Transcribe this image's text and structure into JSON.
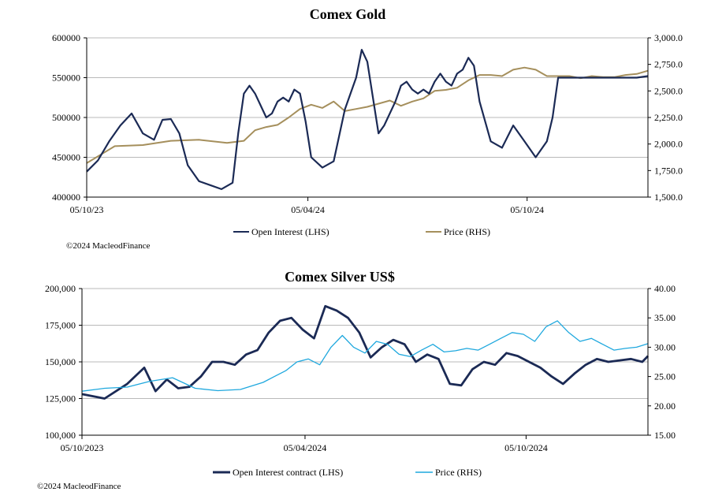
{
  "colors": {
    "gold_oi": "#1b2a55",
    "gold_price": "#a58f5c",
    "silver_oi": "#1b2a55",
    "silver_price": "#1fa8de",
    "grid": "#b9b9b9",
    "axis": "#000000"
  },
  "chart_data": [
    {
      "type": "line",
      "title": "Comex Gold",
      "x_tick_labels": [
        "05/10/23",
        "05/04/24",
        "05/10/24"
      ],
      "x_tick_positions": [
        0,
        0.3941,
        0.7847
      ],
      "left_axis": {
        "ticks": [
          "400000",
          "450000",
          "500000",
          "550000",
          "600000"
        ],
        "ylim": [
          400000,
          600000
        ]
      },
      "right_axis": {
        "ticks": [
          "1,500.0",
          "1,750.0",
          "2,000.0",
          "2,250.0",
          "2,500.0",
          "2,750.0",
          "3,000.0"
        ],
        "ylim": [
          1500,
          3000
        ]
      },
      "legend": [
        "Open Interest (LHS)",
        "Price (RHS)"
      ],
      "copyright": "©2024 MacleodFinance",
      "series": [
        {
          "name": "Open Interest (LHS)",
          "axis": "left",
          "x": [
            0,
            0.02,
            0.04,
            0.06,
            0.08,
            0.1,
            0.12,
            0.135,
            0.15,
            0.165,
            0.18,
            0.2,
            0.22,
            0.24,
            0.26,
            0.27,
            0.28,
            0.29,
            0.3,
            0.32,
            0.33,
            0.34,
            0.35,
            0.36,
            0.37,
            0.38,
            0.39,
            0.4,
            0.42,
            0.44,
            0.46,
            0.48,
            0.49,
            0.5,
            0.51,
            0.52,
            0.53,
            0.55,
            0.56,
            0.57,
            0.58,
            0.59,
            0.6,
            0.61,
            0.62,
            0.63,
            0.64,
            0.65,
            0.66,
            0.67,
            0.68,
            0.69,
            0.7,
            0.72,
            0.74,
            0.76,
            0.78,
            0.8,
            0.82,
            0.83,
            0.84,
            0.85,
            0.86,
            0.87,
            0.88,
            0.9,
            0.92,
            0.94,
            0.96,
            0.98,
            1.0
          ],
          "values": [
            432000,
            446000,
            470000,
            490000,
            505000,
            480000,
            472000,
            497000,
            498000,
            480000,
            440000,
            420000,
            415000,
            410000,
            418000,
            480000,
            530000,
            540000,
            530000,
            500000,
            505000,
            520000,
            525000,
            520000,
            535000,
            530000,
            495000,
            450000,
            437000,
            445000,
            510000,
            550000,
            585000,
            570000,
            525000,
            480000,
            490000,
            520000,
            540000,
            545000,
            535000,
            530000,
            535000,
            530000,
            545000,
            555000,
            545000,
            540000,
            555000,
            560000,
            575000,
            565000,
            520000,
            470000,
            462000,
            490000,
            470000,
            450000,
            470000,
            500000,
            550000,
            550000,
            550000,
            550000,
            550000,
            550000,
            550000,
            550000,
            550000,
            550000,
            552000
          ]
        },
        {
          "name": "Price (RHS)",
          "axis": "right",
          "x": [
            0,
            0.05,
            0.1,
            0.15,
            0.2,
            0.25,
            0.28,
            0.3,
            0.32,
            0.34,
            0.36,
            0.38,
            0.4,
            0.42,
            0.44,
            0.46,
            0.48,
            0.5,
            0.52,
            0.54,
            0.56,
            0.58,
            0.6,
            0.62,
            0.64,
            0.66,
            0.68,
            0.7,
            0.72,
            0.74,
            0.76,
            0.78,
            0.8,
            0.82,
            0.84,
            0.86,
            0.88,
            0.9,
            0.92,
            0.94,
            0.96,
            0.98,
            1.0
          ],
          "values": [
            1820,
            1980,
            1990,
            2030,
            2040,
            2010,
            2030,
            2130,
            2160,
            2180,
            2250,
            2330,
            2370,
            2340,
            2400,
            2310,
            2330,
            2350,
            2380,
            2410,
            2360,
            2400,
            2430,
            2500,
            2510,
            2530,
            2600,
            2650,
            2650,
            2640,
            2700,
            2720,
            2700,
            2640,
            2640,
            2640,
            2620,
            2640,
            2630,
            2630,
            2650,
            2660,
            2690
          ]
        }
      ]
    },
    {
      "type": "line",
      "title": "Comex Silver US$",
      "x_tick_labels": [
        "05/10/2023",
        "05/04/2024",
        "05/10/2024"
      ],
      "x_tick_positions": [
        0,
        0.3941,
        0.7847
      ],
      "left_axis": {
        "ticks": [
          "100,000",
          "125,000",
          "150,000",
          "175,000",
          "200,000"
        ],
        "ylim": [
          100000,
          200000
        ]
      },
      "right_axis": {
        "ticks": [
          "15.00",
          "20.00",
          "25.00",
          "30.00",
          "35.00",
          "40.00"
        ],
        "ylim": [
          15,
          40
        ]
      },
      "legend": [
        "Open Interest contract (LHS)",
        "Price (RHS)"
      ],
      "copyright": "©2024 MacleodFinance",
      "series": [
        {
          "name": "Open Interest contract (LHS)",
          "axis": "left",
          "x": [
            0,
            0.04,
            0.08,
            0.11,
            0.13,
            0.15,
            0.17,
            0.19,
            0.21,
            0.23,
            0.25,
            0.27,
            0.29,
            0.31,
            0.33,
            0.35,
            0.37,
            0.39,
            0.41,
            0.43,
            0.45,
            0.47,
            0.49,
            0.51,
            0.53,
            0.55,
            0.57,
            0.59,
            0.61,
            0.63,
            0.65,
            0.67,
            0.69,
            0.71,
            0.73,
            0.75,
            0.77,
            0.79,
            0.81,
            0.83,
            0.85,
            0.87,
            0.89,
            0.91,
            0.93,
            0.95,
            0.97,
            0.99,
            1.0
          ],
          "values": [
            128000,
            125000,
            135000,
            146000,
            130000,
            138000,
            132000,
            133000,
            140000,
            150000,
            150000,
            148000,
            155000,
            158000,
            170000,
            178000,
            180000,
            172000,
            166000,
            188000,
            185000,
            180000,
            170000,
            153000,
            160000,
            165000,
            162000,
            150000,
            155000,
            152000,
            135000,
            134000,
            145000,
            150000,
            148000,
            156000,
            154000,
            150000,
            146000,
            140000,
            135000,
            142000,
            148000,
            152000,
            150000,
            151000,
            152000,
            150000,
            154000
          ]
        },
        {
          "name": "Price (RHS)",
          "axis": "right",
          "x": [
            0,
            0.04,
            0.08,
            0.12,
            0.16,
            0.2,
            0.24,
            0.28,
            0.32,
            0.34,
            0.36,
            0.38,
            0.4,
            0.42,
            0.44,
            0.46,
            0.48,
            0.5,
            0.52,
            0.54,
            0.56,
            0.58,
            0.6,
            0.62,
            0.64,
            0.66,
            0.68,
            0.7,
            0.72,
            0.74,
            0.76,
            0.78,
            0.8,
            0.82,
            0.84,
            0.86,
            0.88,
            0.9,
            0.92,
            0.94,
            0.96,
            0.98,
            1.0
          ],
          "values": [
            22.5,
            23,
            23.2,
            24.2,
            24.8,
            23,
            22.6,
            22.8,
            24,
            25,
            26,
            27.5,
            28,
            27,
            30,
            32,
            30,
            29,
            31,
            30.5,
            28.8,
            28.4,
            29.5,
            30.5,
            29.2,
            29.4,
            29.8,
            29.5,
            30.5,
            31.5,
            32.5,
            32.2,
            31,
            33.5,
            34.5,
            32.5,
            31,
            31.5,
            30.5,
            29.5,
            29.8,
            30,
            30.6
          ]
        }
      ]
    }
  ]
}
